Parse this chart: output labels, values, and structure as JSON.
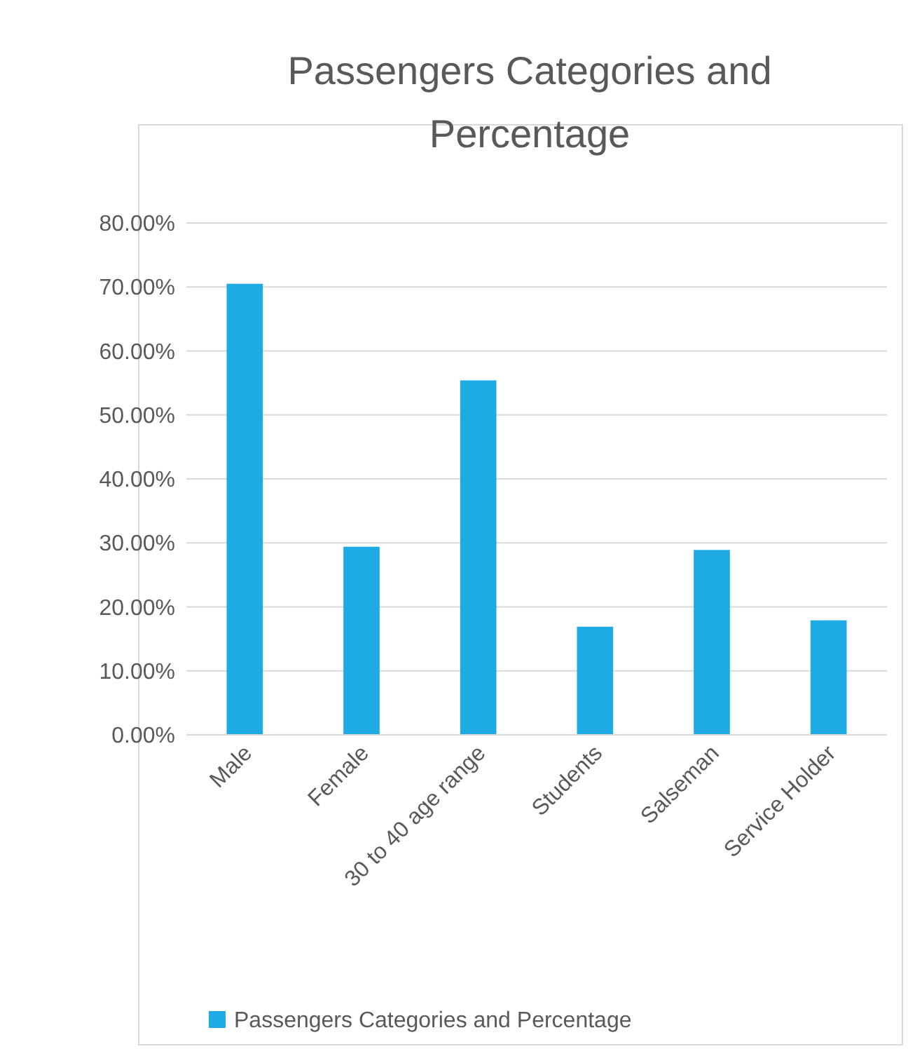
{
  "chart_data": {
    "type": "bar",
    "title": "Passengers Categories and Percentage",
    "categories": [
      "Male",
      "Female",
      "30 to 40 age range",
      "Students",
      "Salseman",
      "Service Holder"
    ],
    "series": [
      {
        "name": "Passengers Categories and Percentage",
        "color": "#1eaae2",
        "values": [
          70.5,
          29.4,
          55.4,
          16.9,
          28.9,
          17.9
        ]
      }
    ],
    "ylim": [
      0,
      80
    ],
    "yticks": [
      {
        "value": 0,
        "label": "0.00%"
      },
      {
        "value": 10,
        "label": "10.00%"
      },
      {
        "value": 20,
        "label": "20.00%"
      },
      {
        "value": 30,
        "label": "30.00%"
      },
      {
        "value": 40,
        "label": "40.00%"
      },
      {
        "value": 50,
        "label": "50.00%"
      },
      {
        "value": 60,
        "label": "60.00%"
      },
      {
        "value": 70,
        "label": "70.00%"
      },
      {
        "value": 80,
        "label": "80.00%"
      }
    ],
    "grid": "y",
    "legend": "bottom"
  }
}
